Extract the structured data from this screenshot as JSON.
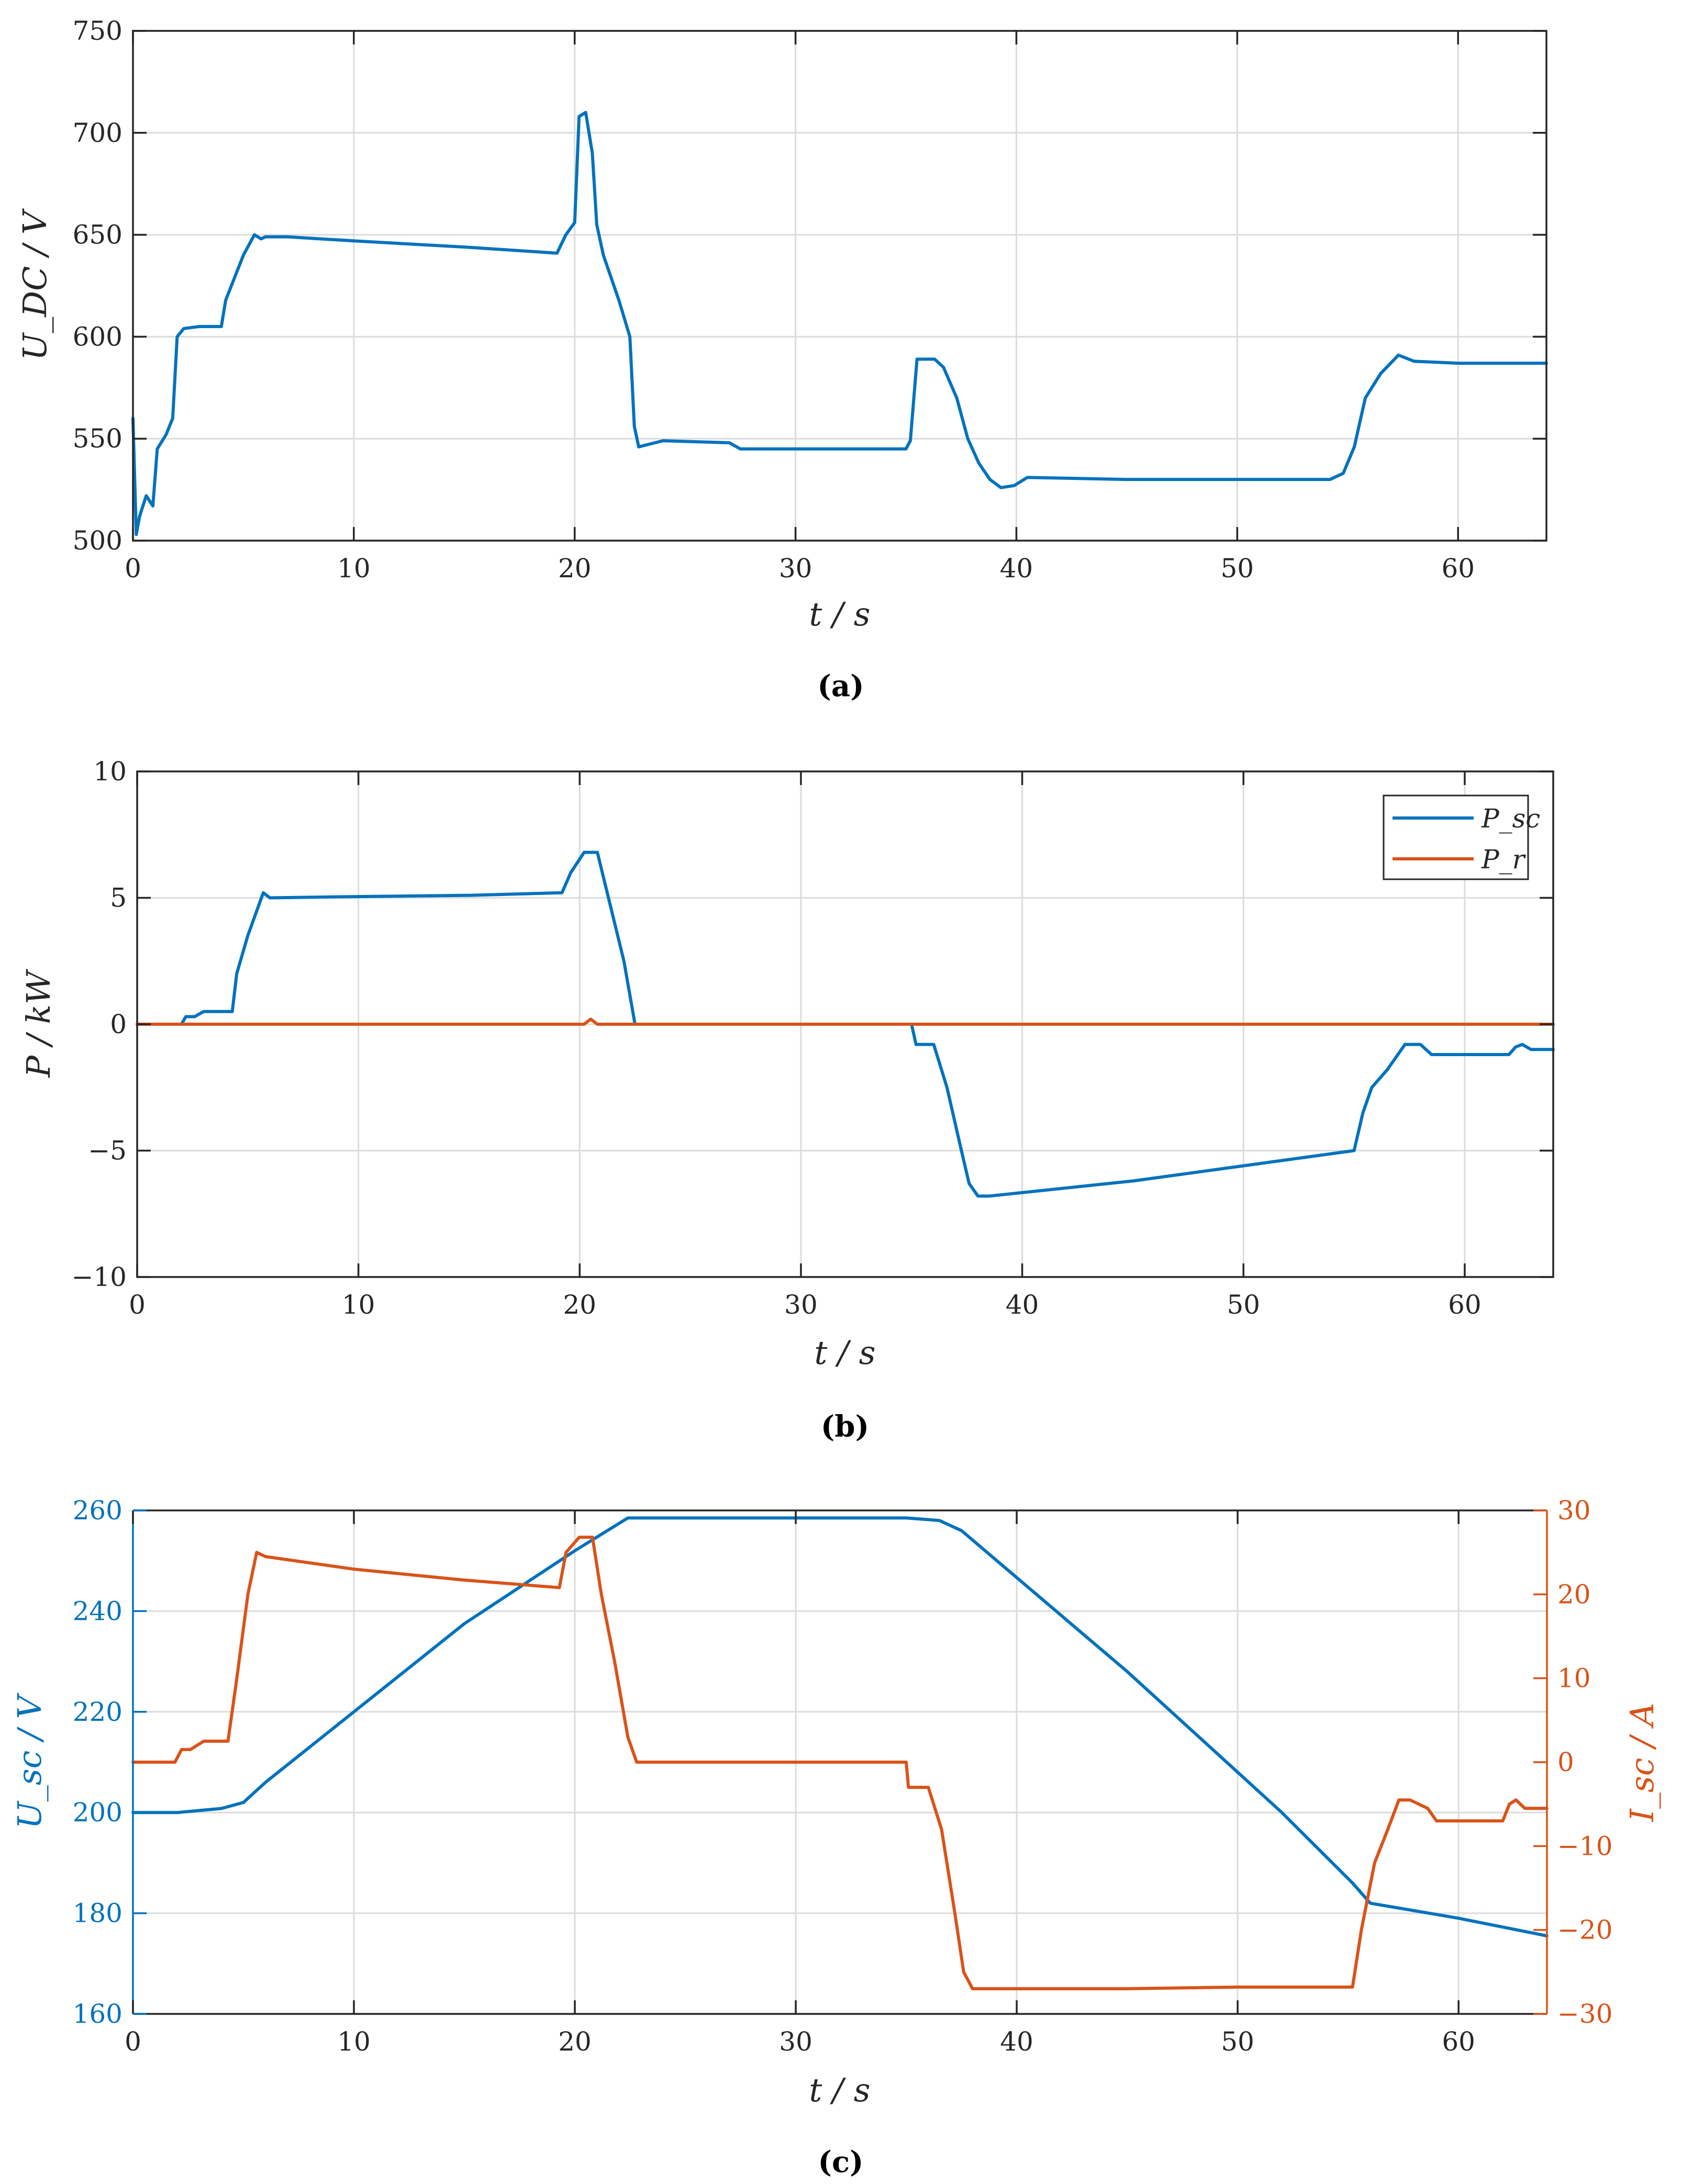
{
  "chart_data": [
    {
      "id": "a",
      "type": "line",
      "caption": "(a)",
      "xlabel": "t / s",
      "ylabel": "U_DC / V",
      "xlim": [
        0,
        64
      ],
      "ylim": [
        500,
        750
      ],
      "xticks": [
        0,
        10,
        20,
        30,
        40,
        50,
        60
      ],
      "yticks": [
        500,
        550,
        600,
        650,
        700,
        750
      ],
      "grid": true,
      "series": [
        {
          "name": "U_DC",
          "color": "#0072BD",
          "x": [
            0,
            0.15,
            0.3,
            0.6,
            0.9,
            1.1,
            1.5,
            1.8,
            2.0,
            2.3,
            3.0,
            4.0,
            4.2,
            5.0,
            5.5,
            5.8,
            6.0,
            7,
            10,
            15,
            19.2,
            19.6,
            20.0,
            20.2,
            20.5,
            20.8,
            21.0,
            21.3,
            22.0,
            22.5,
            22.7,
            22.9,
            24,
            27,
            27.5,
            30,
            35,
            35.2,
            35.5,
            36.3,
            36.7,
            37.3,
            37.8,
            38.3,
            38.8,
            39.3,
            39.9,
            40.5,
            45,
            50,
            54.2,
            54.8,
            55.3,
            55.8,
            56.5,
            57.3,
            58.0,
            60,
            64
          ],
          "y": [
            560,
            503,
            512,
            522,
            517,
            545,
            552,
            560,
            600,
            604,
            605,
            605,
            618,
            640,
            650,
            648,
            649,
            649,
            647,
            644,
            641,
            650,
            656,
            708,
            710,
            690,
            655,
            640,
            618,
            600,
            556,
            546,
            549,
            548,
            545,
            545,
            545,
            549,
            589,
            589,
            585,
            570,
            550,
            538,
            530,
            526,
            527,
            531,
            530,
            530,
            530,
            533,
            546,
            570,
            582,
            591,
            588,
            587,
            587
          ]
        }
      ]
    },
    {
      "id": "b",
      "type": "line",
      "caption": "(b)",
      "xlabel": "t / s",
      "ylabel": "P / kW",
      "xlim": [
        0,
        64
      ],
      "ylim": [
        -10,
        10
      ],
      "xticks": [
        0,
        10,
        20,
        30,
        40,
        50,
        60
      ],
      "yticks": [
        -10,
        -5,
        0,
        5,
        10
      ],
      "ytick_labels": [
        "−10",
        "−5",
        "0",
        "5",
        "10"
      ],
      "grid": true,
      "legend": "top-right",
      "series": [
        {
          "name": "P_sc",
          "color": "#0072BD",
          "x": [
            0,
            2.0,
            2.2,
            2.6,
            3.0,
            4.3,
            4.5,
            5.0,
            5.7,
            6.0,
            10,
            15,
            19.2,
            19.6,
            20.2,
            20.8,
            21.3,
            22.0,
            22.5,
            30,
            35.0,
            35.2,
            36.0,
            36.6,
            37.2,
            37.6,
            38.0,
            38.5,
            45,
            50,
            55.0,
            55.4,
            55.8,
            56.5,
            57.3,
            58.0,
            58.5,
            62.0,
            62.3,
            62.6,
            63.0,
            64
          ],
          "y": [
            0,
            0,
            0.3,
            0.3,
            0.5,
            0.5,
            2.0,
            3.5,
            5.2,
            5.0,
            5.05,
            5.1,
            5.2,
            6.0,
            6.8,
            6.8,
            5.0,
            2.5,
            0,
            0,
            0,
            -0.8,
            -0.8,
            -2.5,
            -4.8,
            -6.3,
            -6.8,
            -6.8,
            -6.2,
            -5.6,
            -5.0,
            -3.5,
            -2.5,
            -1.8,
            -0.8,
            -0.8,
            -1.2,
            -1.2,
            -0.9,
            -0.8,
            -1.0,
            -1.0
          ]
        },
        {
          "name": "P_r",
          "color": "#D95319",
          "x": [
            0,
            20.2,
            20.5,
            20.8,
            64
          ],
          "y": [
            0,
            0,
            0.2,
            0,
            0
          ]
        }
      ]
    },
    {
      "id": "c",
      "type": "line",
      "caption": "(c)",
      "xlabel": "t / s",
      "ylabel_left": "U_sc / V",
      "ylabel_right": "I_sc / A",
      "xlim": [
        0,
        64
      ],
      "ylim_left": [
        160,
        260
      ],
      "ylim_right": [
        -30,
        30
      ],
      "xticks": [
        0,
        10,
        20,
        30,
        40,
        50,
        60
      ],
      "yticks_left": [
        160,
        180,
        200,
        220,
        240,
        260
      ],
      "yticks_right": [
        -30,
        -20,
        -10,
        0,
        10,
        20,
        30
      ],
      "ytick_labels_right": [
        "−30",
        "−20",
        "−10",
        "0",
        "10",
        "20",
        "30"
      ],
      "grid": true,
      "series": [
        {
          "name": "U_sc",
          "axis": "left",
          "color": "#0072BD",
          "x": [
            0,
            2,
            4,
            5,
            6,
            10,
            15,
            20,
            22.4,
            30,
            35,
            36.5,
            37.5,
            45,
            52,
            55.2,
            56,
            58,
            60,
            64
          ],
          "y": [
            200,
            200,
            200.8,
            202,
            206,
            220,
            237.5,
            252,
            258.5,
            258.5,
            258.5,
            258,
            256,
            228,
            200,
            186,
            182,
            180.5,
            179,
            175.5
          ]
        },
        {
          "name": "I_sc",
          "axis": "right",
          "color": "#D95319",
          "x": [
            0,
            1.9,
            2.2,
            2.6,
            3.2,
            4.3,
            4.7,
            5.2,
            5.6,
            6.0,
            10,
            15,
            19.3,
            19.6,
            20.2,
            20.8,
            21.2,
            21.8,
            22.4,
            22.8,
            30,
            35.0,
            35.1,
            36.0,
            36.6,
            37.2,
            37.6,
            38.0,
            45,
            50,
            55.2,
            55.6,
            56.2,
            56.8,
            57.3,
            57.8,
            58.6,
            59.0,
            62.0,
            62.3,
            62.6,
            63.0,
            64
          ],
          "y": [
            0,
            0,
            1.5,
            1.5,
            2.5,
            2.5,
            10,
            20,
            25,
            24.5,
            23,
            21.7,
            20.8,
            25,
            26.8,
            26.8,
            20,
            12,
            3,
            0,
            0,
            0,
            -3,
            -3,
            -8,
            -18,
            -25,
            -27,
            -27,
            -26.8,
            -26.8,
            -20,
            -12,
            -8,
            -4.5,
            -4.5,
            -5.5,
            -7,
            -7,
            -5,
            -4.5,
            -5.5,
            -5.5
          ]
        }
      ]
    }
  ]
}
